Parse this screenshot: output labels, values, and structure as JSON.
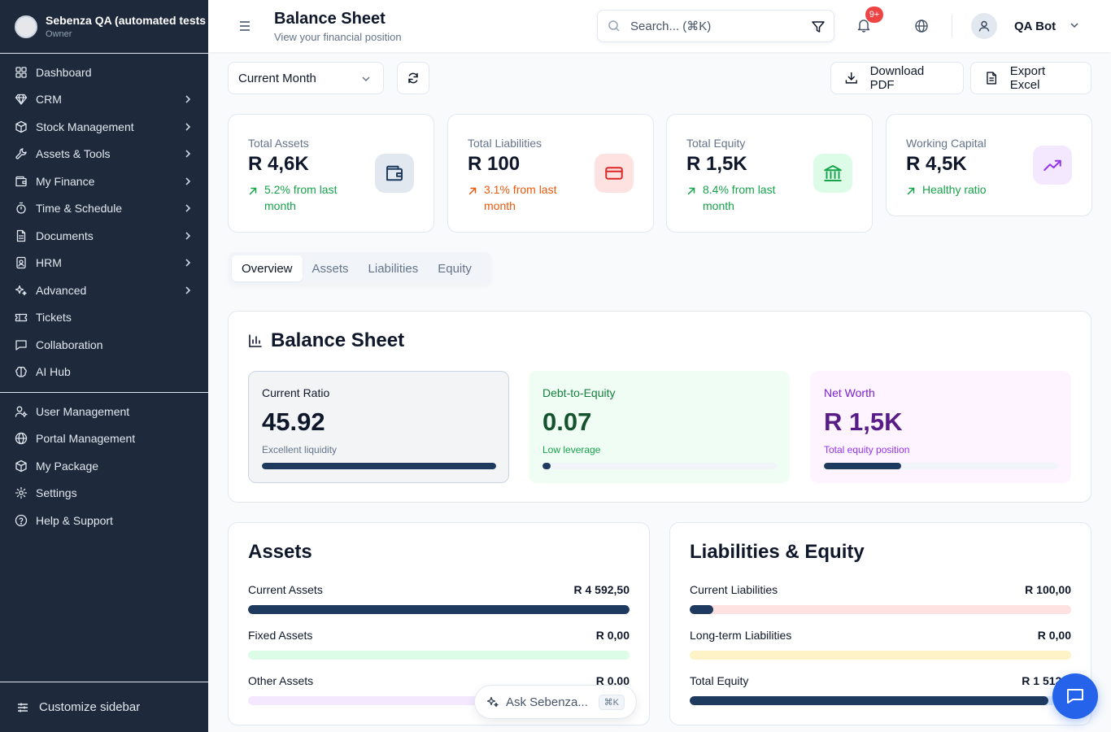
{
  "colors": {
    "sidebar_bg": "#1e293b",
    "accent_navy": "#1e3a5f",
    "positive": "#16a34a",
    "warning": "#ea580c",
    "fab": "#2563eb",
    "badge": "#ef4444"
  },
  "sidebar": {
    "org_name": "Sebenza QA (automated tests",
    "role": "Owner",
    "items": [
      {
        "label": "Dashboard",
        "icon": "dashboard-grid-icon",
        "has_children": false
      },
      {
        "label": "CRM",
        "icon": "gem-icon",
        "has_children": true
      },
      {
        "label": "Stock Management",
        "icon": "package-icon",
        "has_children": true
      },
      {
        "label": "Assets & Tools",
        "icon": "wrench-icon",
        "has_children": true
      },
      {
        "label": "My Finance",
        "icon": "wallet-icon",
        "has_children": true
      },
      {
        "label": "Time & Schedule",
        "icon": "timer-icon",
        "has_children": true
      },
      {
        "label": "Documents",
        "icon": "document-icon",
        "has_children": true
      },
      {
        "label": "HRM",
        "icon": "id-card-icon",
        "has_children": true
      },
      {
        "label": "Advanced",
        "icon": "sparkles-icon",
        "has_children": true
      },
      {
        "label": "Tickets",
        "icon": "ticket-icon",
        "has_children": false
      },
      {
        "label": "Collaboration",
        "icon": "chat-icon",
        "has_children": false
      },
      {
        "label": "AI Hub",
        "icon": "brain-icon",
        "has_children": false
      }
    ],
    "bottom_items": [
      {
        "label": "User Management",
        "icon": "user-cog-icon"
      },
      {
        "label": "Portal Management",
        "icon": "globe-icon"
      },
      {
        "label": "My Package",
        "icon": "package-icon"
      },
      {
        "label": "Settings",
        "icon": "gear-icon"
      },
      {
        "label": "Help & Support",
        "icon": "help-circle-icon"
      }
    ],
    "customize_label": "Customize sidebar"
  },
  "header": {
    "title": "Balance Sheet",
    "subtitle": "View your financial position",
    "search_placeholder": "Search... (⌘K)",
    "notification_badge": "9+",
    "user_name": "QA Bot"
  },
  "toolbar": {
    "period_value": "Current Month",
    "download_pdf_label": "Download PDF",
    "export_excel_label": "Export Excel"
  },
  "kpis": [
    {
      "title": "Total Assets",
      "value": "R 4,6K",
      "trend": "5.2% from last month",
      "trend_color": "#16a34a",
      "icon": "wallet-icon",
      "icon_bg": "#e2e8f0",
      "icon_color": "#1e3a5f"
    },
    {
      "title": "Total Liabilities",
      "value": "R 100",
      "trend": "3.1% from last month",
      "trend_color": "#ea580c",
      "icon": "credit-card-icon",
      "icon_bg": "#fee2e2",
      "icon_color": "#dc2626"
    },
    {
      "title": "Total Equity",
      "value": "R 1,5K",
      "trend": "8.4% from last month",
      "trend_color": "#16a34a",
      "icon": "bank-icon",
      "icon_bg": "#dcfce7",
      "icon_color": "#16a34a"
    },
    {
      "title": "Working Capital",
      "value": "R 4,5K",
      "trend": "Healthy ratio",
      "trend_color": "#16a34a",
      "icon": "trending-up-icon",
      "icon_bg": "#f3e8ff",
      "icon_color": "#9333ea"
    }
  ],
  "tabs": [
    {
      "label": "Overview",
      "active": true
    },
    {
      "label": "Assets",
      "active": false
    },
    {
      "label": "Liabilities",
      "active": false
    },
    {
      "label": "Equity",
      "active": false
    }
  ],
  "balance_sheet": {
    "title": "Balance Sheet",
    "ratios": [
      {
        "label": "Current Ratio",
        "value": "45.92",
        "note": "Excellent liquidity",
        "progress": 1.0,
        "bg": "#f3f4f6",
        "border": "#cbd5e1",
        "label_color": "#0f172a",
        "value_color": "#0f172a",
        "note_color": "#64748b",
        "track": "#e2e8f0",
        "fill": "#1e3a5f"
      },
      {
        "label": "Debt-to-Equity",
        "value": "0.07",
        "note": "Low leverage",
        "progress": 0.035,
        "bg": "#f0fdf4",
        "border": "#f0fdf4",
        "label_color": "#15803d",
        "value_color": "#14532d",
        "note_color": "#16a34a",
        "track": "#f1f5f9",
        "fill": "#1e3a5f"
      },
      {
        "label": "Net Worth",
        "value": "R 1,5K",
        "note": "Total equity position",
        "progress": 0.33,
        "bg": "#fdf4ff",
        "border": "#fdf4ff",
        "label_color": "#7e22ce",
        "value_color": "#581c87",
        "note_color": "#9333ea",
        "track": "#f1f5f9",
        "fill": "#1e3a5f"
      }
    ]
  },
  "assets_card": {
    "title": "Assets",
    "rows": [
      {
        "label": "Current Assets",
        "amount": "R 4 592,50",
        "progress": 1.0,
        "track": "#dbeafe"
      },
      {
        "label": "Fixed Assets",
        "amount": "R 0,00",
        "progress": 0.0,
        "track": "#dcfce7"
      },
      {
        "label": "Other Assets",
        "amount": "R 0.00",
        "progress": 0.0,
        "track": "#f3e8ff"
      }
    ]
  },
  "liabilities_card": {
    "title": "Liabilities & Equity",
    "rows": [
      {
        "label": "Current Liabilities",
        "amount": "R 100,00",
        "progress": 0.062,
        "track": "#fee2e2"
      },
      {
        "label": "Long-term Liabilities",
        "amount": "R 0,00",
        "progress": 0.0,
        "track": "#fef3c7"
      },
      {
        "label": "Total Equity",
        "amount": "R 1 512,5",
        "progress": 0.94,
        "track": "#dbeafe"
      }
    ]
  },
  "ask": {
    "label": "Ask Sebenza...",
    "shortcut": "⌘K"
  }
}
